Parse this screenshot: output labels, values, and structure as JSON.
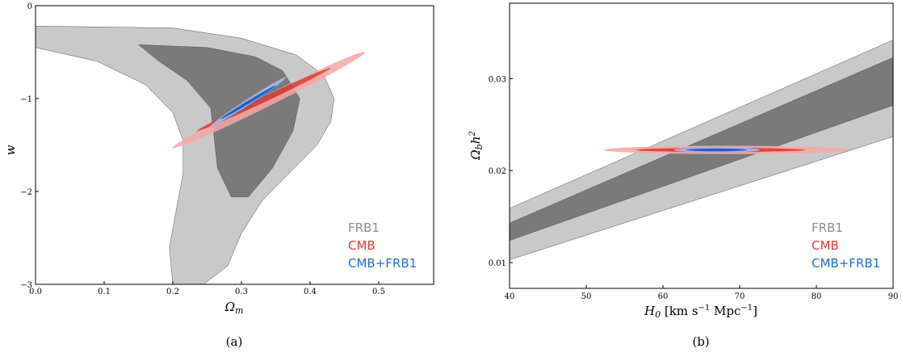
{
  "chart_data": [
    {
      "type": "contour",
      "caption": "(a)",
      "xlabel": "Ωm",
      "ylabel": "w",
      "xlim": [
        0.0,
        0.58
      ],
      "ylim": [
        -3,
        0
      ],
      "xticks": [
        "0.0",
        "0.1",
        "0.2",
        "0.3",
        "0.4",
        "0.5"
      ],
      "yticks": [
        "0",
        "−1",
        "−2",
        "−3"
      ],
      "legend_position": "bottom-right",
      "series": [
        {
          "name": "FRB1",
          "color": "#8c8c8c",
          "outer_color": "#c9c9c9",
          "inner_color": "#7a7a7a",
          "outer_contour": [
            [
              0.0,
              -0.45
            ],
            [
              0.0,
              -0.22
            ],
            [
              0.2,
              -0.24
            ],
            [
              0.3,
              -0.35
            ],
            [
              0.38,
              -0.53
            ],
            [
              0.42,
              -0.75
            ],
            [
              0.435,
              -1.0
            ],
            [
              0.43,
              -1.25
            ],
            [
              0.41,
              -1.5
            ],
            [
              0.37,
              -1.8
            ],
            [
              0.33,
              -2.1
            ],
            [
              0.3,
              -2.45
            ],
            [
              0.28,
              -2.8
            ],
            [
              0.245,
              -3.0
            ],
            [
              0.2,
              -3.0
            ],
            [
              0.195,
              -2.6
            ],
            [
              0.205,
              -2.2
            ],
            [
              0.215,
              -1.8
            ],
            [
              0.215,
              -1.45
            ],
            [
              0.2,
              -1.15
            ],
            [
              0.16,
              -0.85
            ],
            [
              0.09,
              -0.6
            ],
            [
              0.0,
              -0.45
            ]
          ],
          "inner_contour": [
            [
              0.15,
              -0.42
            ],
            [
              0.25,
              -0.45
            ],
            [
              0.32,
              -0.55
            ],
            [
              0.36,
              -0.7
            ],
            [
              0.385,
              -1.0
            ],
            [
              0.375,
              -1.35
            ],
            [
              0.345,
              -1.75
            ],
            [
              0.31,
              -2.06
            ],
            [
              0.285,
              -2.06
            ],
            [
              0.265,
              -1.75
            ],
            [
              0.26,
              -1.4
            ],
            [
              0.255,
              -1.1
            ],
            [
              0.22,
              -0.8
            ],
            [
              0.18,
              -0.6
            ],
            [
              0.15,
              -0.42
            ]
          ]
        },
        {
          "name": "CMB",
          "color": "#e03c31",
          "outer_color": "#f4aaa6",
          "inner_color": "#e03c31",
          "outer_ellipse": {
            "cx": 0.34,
            "cy": -1.0,
            "x1": 0.2,
            "y1": -1.53,
            "x2": 0.48,
            "y2": -0.5,
            "half_width": 0.06
          },
          "inner_ellipse": {
            "cx": 0.33,
            "cy": -1.02,
            "x1": 0.235,
            "y1": -1.35,
            "x2": 0.43,
            "y2": -0.67,
            "half_width": 0.03
          }
        },
        {
          "name": "CMB+FRB1",
          "color": "#1f6fd6",
          "outer_color": "#9db3ec",
          "inner_color": "#1f5fd0",
          "outer_ellipse": {
            "cx": 0.31,
            "cy": -1.03,
            "x1": 0.255,
            "y1": -1.3,
            "x2": 0.365,
            "y2": -0.77,
            "half_width": 0.03
          },
          "inner_ellipse": {
            "cx": 0.31,
            "cy": -1.04,
            "x1": 0.27,
            "y1": -1.22,
            "x2": 0.35,
            "y2": -0.86,
            "half_width": 0.016
          }
        }
      ]
    },
    {
      "type": "contour",
      "caption": "(b)",
      "xlabel": "H0 [km s−1 Mpc−1]",
      "ylabel": "Ωbh2",
      "xlim": [
        40,
        90
      ],
      "ylim": [
        0.0072,
        0.0382
      ],
      "xticks": [
        "40",
        "50",
        "60",
        "70",
        "80",
        "90"
      ],
      "yticks": [
        "0.01",
        "0.02",
        "0.03"
      ],
      "legend_position": "bottom-right",
      "series": [
        {
          "name": "FRB1",
          "color": "#8c8c8c",
          "outer_color": "#c9c9c9",
          "inner_color": "#7a7a7a",
          "outer_band": {
            "x": [
              40,
              90
            ],
            "lower": [
              0.0103,
              0.0237
            ],
            "upper": [
              0.0159,
              0.0342
            ]
          },
          "inner_band": {
            "x": [
              40,
              90
            ],
            "lower": [
              0.0124,
              0.0271
            ],
            "upper": [
              0.0143,
              0.0323
            ]
          }
        },
        {
          "name": "CMB",
          "color": "#e03c31",
          "outer_color": "#f4aaa6",
          "inner_color": "#e03c31",
          "outer_ellipse": {
            "cx": 68.3,
            "cy": 0.02225,
            "x_half": 16.0,
            "y_half": 0.00045
          },
          "inner_ellipse": {
            "cx": 67.5,
            "cy": 0.02225,
            "x_half": 11.0,
            "y_half": 0.00022
          }
        },
        {
          "name": "CMB+FRB1",
          "color": "#1f6fd6",
          "outer_color": "#9db3ec",
          "inner_color": "#1f5fd0",
          "outer_ellipse": {
            "cx": 67.0,
            "cy": 0.02225,
            "x_half": 5.6,
            "y_half": 0.00028
          },
          "inner_ellipse": {
            "cx": 67.0,
            "cy": 0.02225,
            "x_half": 4.0,
            "y_half": 0.00015
          }
        }
      ]
    }
  ]
}
